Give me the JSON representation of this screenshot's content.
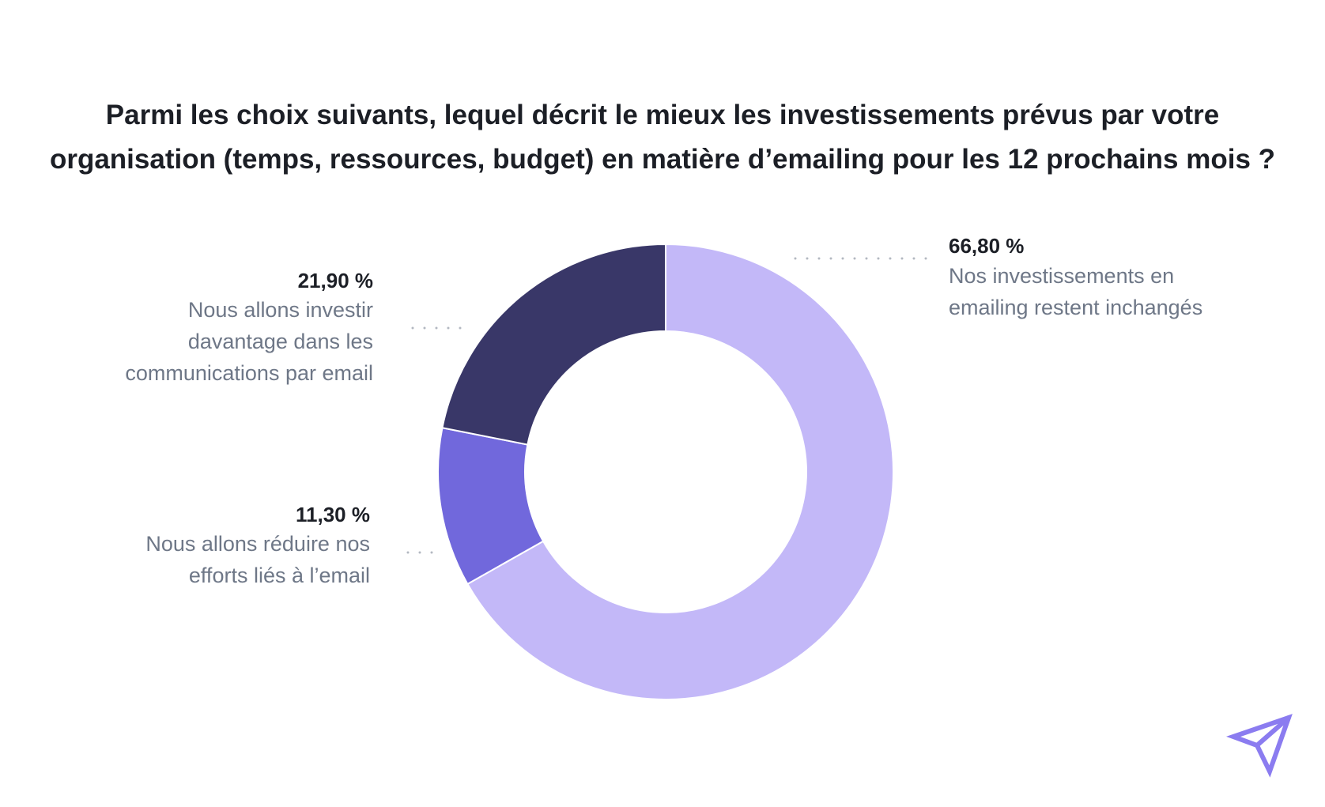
{
  "chart_data": {
    "type": "pie",
    "variant": "donut",
    "title_lines": [
      "Parmi les choix suivants, lequel décrit le mieux les investissements prévus par votre",
      "organisation (temps, ressources, budget) en matière d’emailing pour les 12 prochains mois ?"
    ],
    "slices": [
      {
        "name": "inchanges",
        "value": 66.8,
        "label": "66,80 %",
        "desc_lines": [
          "Nos investissements en",
          "emailing restent inchangés"
        ],
        "color": "#c3b8f8"
      },
      {
        "name": "reduire",
        "value": 11.3,
        "label": "11,30 %",
        "desc_lines": [
          "Nous allons réduire nos",
          "efforts liés à l’email"
        ],
        "color": "#7168dc"
      },
      {
        "name": "investir",
        "value": 21.9,
        "label": "21,90 %",
        "desc_lines": [
          "Nous allons investir",
          "davantage dans les",
          "communications par email"
        ],
        "color": "#393768"
      }
    ]
  },
  "colors": {
    "leader": "#b3b8c1",
    "logo": "#8b7cf0"
  },
  "icons": {
    "logo": "paper-plane-logo-icon"
  }
}
